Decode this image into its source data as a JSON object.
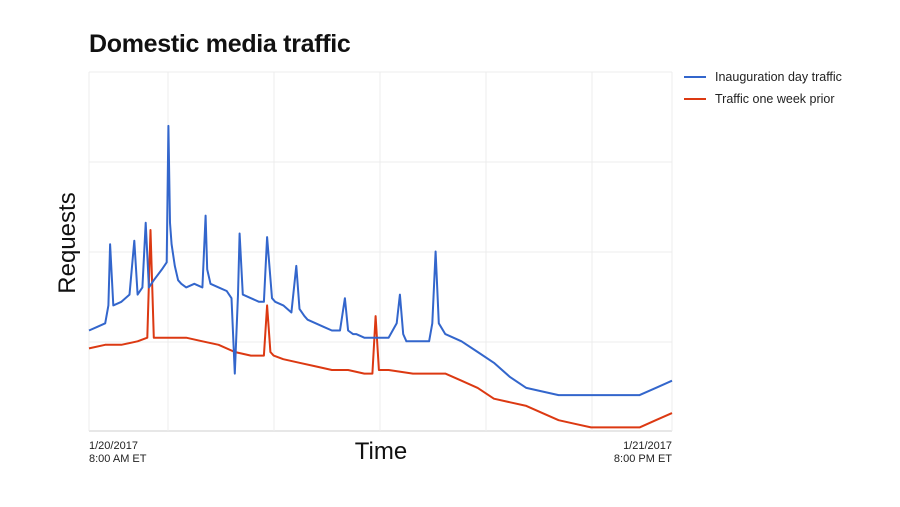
{
  "chart_data": {
    "type": "line",
    "title": "Domestic media traffic",
    "xlabel": "Time",
    "ylabel": "Requests",
    "x_ticks": [
      {
        "line1": "1/20/2017",
        "line2": "8:00 AM ET"
      },
      {
        "line1": "1/21/2017",
        "line2": "8:00 PM ET"
      }
    ],
    "x_range_hours": [
      0,
      36
    ],
    "y_range": [
      0,
      100
    ],
    "grid": true,
    "legend_position": "top-right",
    "series": [
      {
        "name": "Inauguration day traffic",
        "color": "#3366cc",
        "x": [
          0,
          0.5,
          1,
          1.2,
          1.3,
          1.5,
          2,
          2.5,
          2.8,
          3,
          3.3,
          3.5,
          3.7,
          4,
          4.5,
          4.8,
          4.9,
          5.0,
          5.1,
          5.3,
          5.5,
          5.7,
          6,
          6.5,
          7,
          7.2,
          7.3,
          7.5,
          8,
          8.5,
          8.8,
          9.0,
          9.2,
          9.3,
          9.5,
          10,
          10.5,
          10.8,
          11,
          11.3,
          11.5,
          12,
          12.5,
          12.8,
          13,
          13.3,
          13.5,
          14,
          14.5,
          15,
          15.5,
          15.8,
          16,
          16.3,
          16.5,
          17,
          17.5,
          18,
          18.5,
          19,
          19.2,
          19.4,
          19.6,
          20,
          21,
          21.2,
          21.4,
          21.6,
          22,
          23,
          24,
          25,
          26,
          27,
          28,
          29,
          30,
          31,
          32,
          33,
          34,
          35,
          36
        ],
        "y": [
          28,
          29,
          30,
          35,
          52,
          35,
          36,
          38,
          53,
          38,
          40,
          58,
          40,
          42,
          45,
          47,
          85,
          58,
          52,
          46,
          42,
          41,
          40,
          41,
          40,
          60,
          45,
          41,
          40,
          39,
          37,
          16,
          38,
          55,
          38,
          37,
          36,
          36,
          54,
          37,
          36,
          35,
          33,
          46,
          34,
          32,
          31,
          30,
          29,
          28,
          28,
          37,
          28,
          27,
          27,
          26,
          26,
          26,
          26,
          30,
          38,
          27,
          25,
          25,
          25,
          30,
          50,
          30,
          27,
          25,
          22,
          19,
          15,
          12,
          11,
          10,
          10,
          10,
          10,
          10,
          10,
          12,
          14
        ]
      },
      {
        "name": "Traffic one week prior",
        "color": "#dc3912",
        "x": [
          0,
          1,
          2,
          3,
          3.6,
          3.8,
          4.0,
          5,
          6,
          7,
          8,
          9,
          10,
          10.8,
          11.0,
          11.2,
          11.4,
          12,
          13,
          14,
          15,
          16,
          17,
          17.5,
          17.7,
          17.9,
          18.5,
          20,
          21,
          22,
          23,
          24,
          25,
          26,
          27,
          28,
          29,
          30,
          31,
          32,
          33,
          34,
          35,
          36
        ],
        "y": [
          23,
          24,
          24,
          25,
          26,
          56,
          26,
          26,
          26,
          25,
          24,
          22,
          21,
          21,
          35,
          22,
          21,
          20,
          19,
          18,
          17,
          17,
          16,
          16,
          32,
          17,
          17,
          16,
          16,
          16,
          14,
          12,
          9,
          8,
          7,
          5,
          3,
          2,
          1,
          1,
          1,
          1,
          3,
          5
        ]
      }
    ]
  }
}
